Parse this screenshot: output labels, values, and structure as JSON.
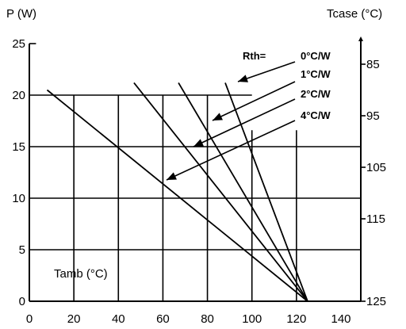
{
  "chart_data": {
    "type": "line",
    "left_axis_title": "P (W)",
    "right_axis_title": "Tcase (°C)",
    "inner_label": "Tamb (°C)",
    "rth_prefix": "Rth=",
    "xlim": [
      0,
      140
    ],
    "ylim": [
      0,
      25
    ],
    "x_ticks": [
      0,
      20,
      40,
      60,
      80,
      100,
      120,
      140
    ],
    "y_ticks": [
      0,
      5,
      10,
      15,
      20,
      25
    ],
    "right_ticks": [
      {
        "p": 23,
        "label": "85"
      },
      {
        "p": 18,
        "label": "95"
      },
      {
        "p": 13,
        "label": "105"
      },
      {
        "p": 8,
        "label": "115"
      },
      {
        "p": 0,
        "label": "125"
      }
    ],
    "grid_v": [
      20,
      40,
      60,
      80,
      100,
      120
    ],
    "grid_h": [
      5,
      10,
      15,
      20,
      25
    ],
    "series": [
      {
        "name": "0 °C/W",
        "points": [
          [
            88,
            21.2
          ],
          [
            125,
            0
          ]
        ]
      },
      {
        "name": "1 °C/W",
        "points": [
          [
            67,
            21.2
          ],
          [
            125,
            0
          ]
        ]
      },
      {
        "name": "2 °C/W",
        "points": [
          [
            47,
            21.2
          ],
          [
            125,
            0
          ]
        ]
      },
      {
        "name": "4 °C/W",
        "points": [
          [
            8,
            20.5
          ],
          [
            125,
            0
          ]
        ]
      }
    ],
    "rth_labels": [
      "0°C/W",
      "1°C/W",
      "2°C/W",
      "4°C/W"
    ]
  }
}
